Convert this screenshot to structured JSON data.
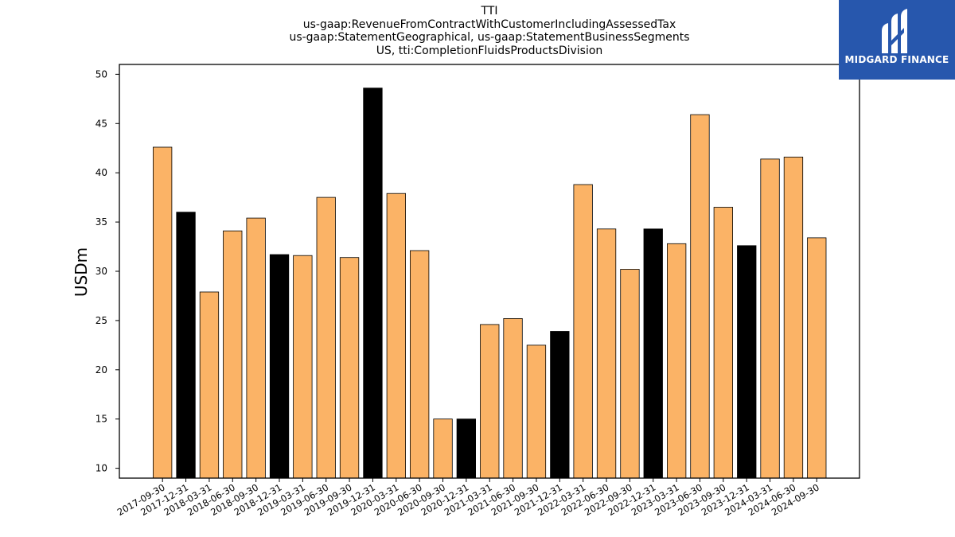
{
  "title_lines": [
    "TTI",
    "us-gaap:RevenueFromContractWithCustomerIncludingAssessedTax",
    "us-gaap:StatementGeographical, us-gaap:StatementBusinessSegments",
    "US, tti:CompletionFluidsProductsDivision"
  ],
  "logo": {
    "text": "MIDGARD FINANCE",
    "background": "#2757ad",
    "icon": "midgard-logo-icon"
  },
  "colors": {
    "q_bar": "#fbb366",
    "year_end_bar": "#000000",
    "bar_edge": "#000000"
  },
  "chart_data": {
    "type": "bar",
    "title": "TTI",
    "ylabel": "USDm",
    "xlabel": "",
    "ylim": [
      9,
      51
    ],
    "yticks": [
      10,
      15,
      20,
      25,
      30,
      35,
      40,
      45,
      50
    ],
    "grid": false,
    "categories": [
      "2017-09-30",
      "2017-12-31",
      "2018-03-31",
      "2018-06-30",
      "2018-09-30",
      "2018-12-31",
      "2019-03-31",
      "2019-06-30",
      "2019-09-30",
      "2019-12-31",
      "2020-03-31",
      "2020-06-30",
      "2020-09-30",
      "2020-12-31",
      "2021-03-31",
      "2021-06-30",
      "2021-09-30",
      "2021-12-31",
      "2022-03-31",
      "2022-06-30",
      "2022-09-30",
      "2022-12-31",
      "2023-03-31",
      "2023-06-30",
      "2023-09-30",
      "2023-12-31",
      "2024-03-31",
      "2024-06-30",
      "2024-09-30"
    ],
    "values": [
      42.6,
      36.0,
      27.9,
      34.1,
      35.4,
      31.7,
      31.6,
      37.5,
      31.4,
      48.6,
      37.9,
      32.1,
      15.0,
      15.0,
      24.6,
      25.2,
      22.5,
      23.9,
      38.8,
      34.3,
      30.2,
      34.3,
      32.8,
      45.9,
      36.5,
      32.6,
      41.4,
      41.6,
      33.4
    ],
    "year_end": [
      false,
      true,
      false,
      false,
      false,
      true,
      false,
      false,
      false,
      true,
      false,
      false,
      false,
      true,
      false,
      false,
      false,
      true,
      false,
      false,
      false,
      true,
      false,
      false,
      false,
      true,
      false,
      false,
      false
    ]
  }
}
